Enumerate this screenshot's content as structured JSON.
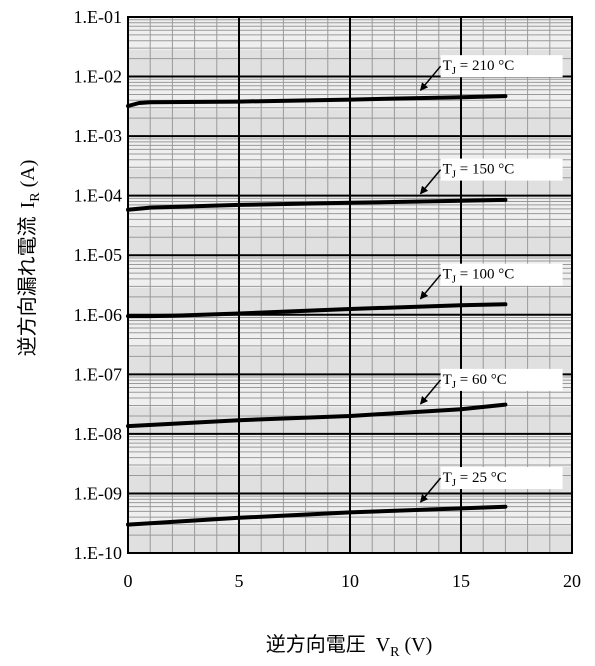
{
  "chart_data": {
    "type": "line",
    "title": "",
    "xlabel": {
      "prefix": "逆方向電圧",
      "symbol": "V",
      "subscript": "R",
      "unit": " (V)"
    },
    "ylabel": {
      "prefix": "逆方向漏れ電流",
      "symbol": "I",
      "subscript": "R",
      "unit": " (A)"
    },
    "xlim": [
      0,
      20
    ],
    "ylim": [
      1e-10,
      0.1
    ],
    "yscale": "log",
    "grid": true,
    "x_ticks": [
      "0",
      "5",
      "10",
      "15",
      "20"
    ],
    "y_ticks": [
      "1.E-10",
      "1.E-09",
      "1.E-08",
      "1.E-07",
      "1.E-06",
      "1.E-05",
      "1.E-04",
      "1.E-03",
      "1.E-02",
      "1.E-01"
    ],
    "series": [
      {
        "name": "TJ = 210 °C",
        "label": {
          "sym": "T",
          "sub": "J",
          "rest": " = 210 °C"
        },
        "x": [
          0,
          0.5,
          1,
          5,
          10,
          15,
          17
        ],
        "y": [
          0.0032,
          0.0036,
          0.0037,
          0.0038,
          0.0041,
          0.0045,
          0.0047
        ]
      },
      {
        "name": "TJ = 150 °C",
        "label": {
          "sym": "T",
          "sub": "J",
          "rest": " = 150 °C"
        },
        "x": [
          0,
          1,
          5,
          10,
          15,
          17
        ],
        "y": [
          5.8e-05,
          6.3e-05,
          7e-05,
          7.6e-05,
          8.2e-05,
          8.5e-05
        ]
      },
      {
        "name": "TJ = 100 °C",
        "label": {
          "sym": "T",
          "sub": "J",
          "rest": " = 100 °C"
        },
        "x": [
          0,
          1,
          2,
          5,
          10,
          15,
          17
        ],
        "y": [
          9.5e-07,
          9.5e-07,
          9.6e-07,
          1.05e-06,
          1.25e-06,
          1.45e-06,
          1.5e-06
        ]
      },
      {
        "name": "TJ = 60 °C",
        "label": {
          "sym": "T",
          "sub": "J",
          "rest": " = 60 °C"
        },
        "x": [
          0,
          5,
          10,
          15,
          17
        ],
        "y": [
          1.35e-08,
          1.7e-08,
          2e-08,
          2.6e-08,
          3.1e-08
        ]
      },
      {
        "name": "TJ = 25 °C",
        "label": {
          "sym": "T",
          "sub": "J",
          "rest": " = 25 °C"
        },
        "x": [
          0,
          5,
          10,
          15,
          17
        ],
        "y": [
          3e-10,
          3.9e-10,
          4.8e-10,
          5.6e-10,
          6e-10
        ]
      }
    ]
  }
}
